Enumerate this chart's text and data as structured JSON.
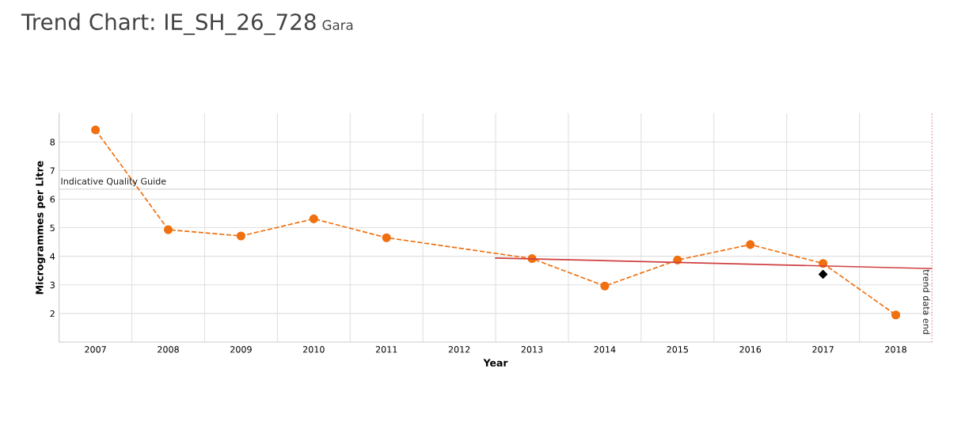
{
  "chart_data": {
    "type": "line",
    "title": "Trend Chart: IE_SH_26_728",
    "subtitle": "Gara",
    "xlabel": "Year",
    "ylabel": "Microgrammes per Litre",
    "xlim": [
      2006.5,
      2018.5
    ],
    "xticks": [
      2007,
      2008,
      2009,
      2010,
      2011,
      2012,
      2013,
      2014,
      2015,
      2016,
      2017,
      2018
    ],
    "ylim": [
      1,
      9
    ],
    "yticks": [
      2,
      3,
      4,
      5,
      6,
      7,
      8
    ],
    "grid": true,
    "legend": false,
    "series": [
      {
        "color": "#f07010",
        "marker": "circle",
        "line_style": "dashed",
        "x": [
          2007,
          2008,
          2009,
          2010,
          2011,
          2013,
          2014,
          2015,
          2016,
          2017,
          2018
        ],
        "values": [
          8.42,
          4.93,
          4.71,
          5.31,
          4.65,
          3.92,
          2.96,
          3.87,
          4.41,
          3.75,
          1.95
        ]
      },
      {
        "color": "#d04040",
        "marker": "none",
        "line_style": "solid",
        "x": [
          2012.5,
          2018.5
        ],
        "values": [
          3.94,
          3.57
        ]
      },
      {
        "type": "scatter",
        "color": "#000000",
        "marker": "diamond",
        "x": [
          2017
        ],
        "values": [
          3.37
        ]
      }
    ],
    "ref_lines": [
      {
        "axis": "y",
        "value": 6.35,
        "label": "Indicative Quality Guide",
        "color": "#dddddd",
        "line_style": "solid"
      },
      {
        "axis": "x",
        "value": 2018.5,
        "label": "trend data end",
        "color": "#c02020",
        "line_style": "dotted"
      }
    ]
  }
}
